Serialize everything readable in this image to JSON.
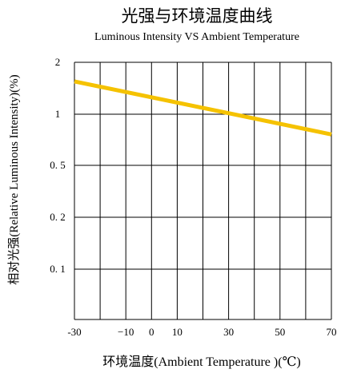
{
  "chart_data": {
    "type": "line",
    "title": "光强与环境温度曲线",
    "subtitle": "Luminous Intensity VS Ambient Temperature",
    "xlabel": "环境温度(Ambient  Temperature )(℃)",
    "ylabel": "相对光强(Relative  Luminous  Intensity)(%)",
    "x_ticks": [
      -30,
      -10,
      0,
      10,
      30,
      50,
      70
    ],
    "x_tick_labels": [
      "-30",
      "−10",
      "0",
      "10",
      "30",
      "50",
      "70"
    ],
    "y_ticks": [
      0.1,
      0.2,
      0.5,
      1,
      2
    ],
    "y_tick_labels": [
      "0. 1",
      "0. 2",
      "0. 5",
      "1",
      "2"
    ],
    "xlim": [
      -30,
      70
    ],
    "grid": true,
    "line_color": "#F5C200",
    "series": [
      {
        "x": [
          -30,
          70
        ],
        "y": [
          1.55,
          0.76
        ]
      }
    ]
  }
}
